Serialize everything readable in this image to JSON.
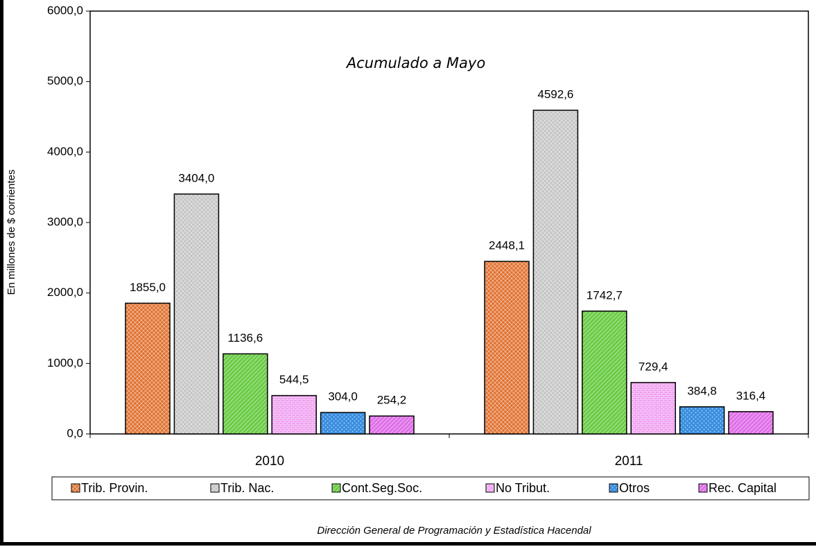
{
  "chart_data": {
    "type": "bar",
    "title": "Acumulado a Mayo",
    "y_label": "En millones de $ corrientes",
    "footer": "Dirección General de Programación y Estadística Hacendal",
    "categories": [
      "2010",
      "2011"
    ],
    "series": [
      {
        "name": "Trib. Provin.",
        "color": "#e0702e",
        "values": [
          1855.0,
          2448.1
        ],
        "value_labels": [
          "1855,0",
          "2448,1"
        ]
      },
      {
        "name": "Trib. Nac.",
        "color": "#c4c4c4",
        "values": [
          3404.0,
          4592.6
        ],
        "value_labels": [
          "3404,0",
          "4592,6"
        ]
      },
      {
        "name": "Cont.Seg.Soc.",
        "color": "#6ccc48",
        "values": [
          1136.6,
          1742.7
        ],
        "value_labels": [
          "1136,6",
          "1742,7"
        ]
      },
      {
        "name": "No Tribut.",
        "color": "#f0a0f0",
        "values": [
          544.5,
          729.4
        ],
        "value_labels": [
          "544,5",
          "729,4"
        ]
      },
      {
        "name": "Otros",
        "color": "#3a8ee0",
        "values": [
          304.0,
          384.8
        ],
        "value_labels": [
          "304,0",
          "384,8"
        ]
      },
      {
        "name": "Rec. Capital",
        "color": "#e070e8",
        "values": [
          254.2,
          316.4
        ],
        "value_labels": [
          "254,2",
          "316,4"
        ]
      }
    ],
    "ylim": [
      0,
      6000
    ],
    "yticks": [
      {
        "value": 0,
        "label": "0,0"
      },
      {
        "value": 1000,
        "label": "1000,0"
      },
      {
        "value": 2000,
        "label": "2000,0"
      },
      {
        "value": 3000,
        "label": "3000,0"
      },
      {
        "value": 4000,
        "label": "4000,0"
      },
      {
        "value": 5000,
        "label": "5000,0"
      },
      {
        "value": 6000,
        "label": "6000,0"
      }
    ],
    "grid": false,
    "legend": "bottom"
  }
}
